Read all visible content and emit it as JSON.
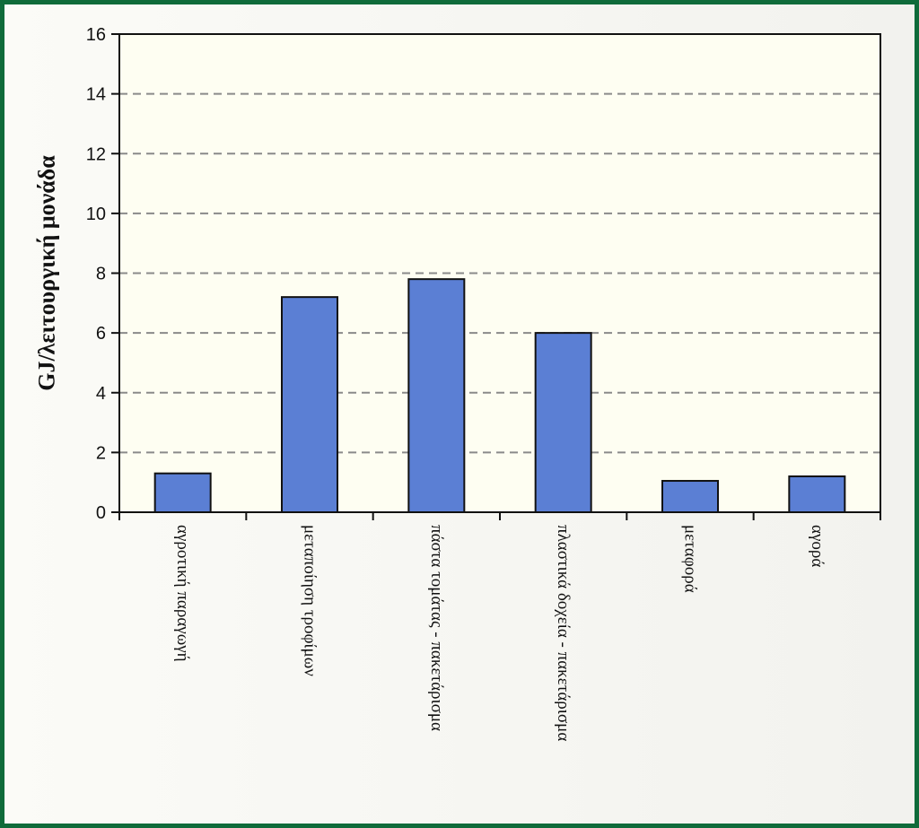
{
  "colors": {
    "frame_border": "#0f6b3a",
    "plot_background": "#fefef2",
    "bar_fill": "#5b7fd4",
    "bar_stroke": "#111111",
    "grid": "#8a8a8a"
  },
  "chart_data": {
    "type": "bar",
    "title": "",
    "xlabel": "",
    "ylabel": "GJ/λειτουργική μονάδα",
    "ylim": [
      0,
      16
    ],
    "yticks": [
      0,
      2,
      4,
      6,
      8,
      10,
      12,
      14,
      16
    ],
    "grid": "horizontal dashed",
    "legend": "none",
    "categories": [
      "αγροτική παραγωγή",
      "μεταποίηση τροφίμων",
      "πάστα τομάτας - πακετάρισμα",
      "πλαστικά δοχεία - πακετάρισμα",
      "μεταφορά",
      "αγορά"
    ],
    "values": [
      1.3,
      7.2,
      7.8,
      6.0,
      1.05,
      1.2
    ]
  }
}
